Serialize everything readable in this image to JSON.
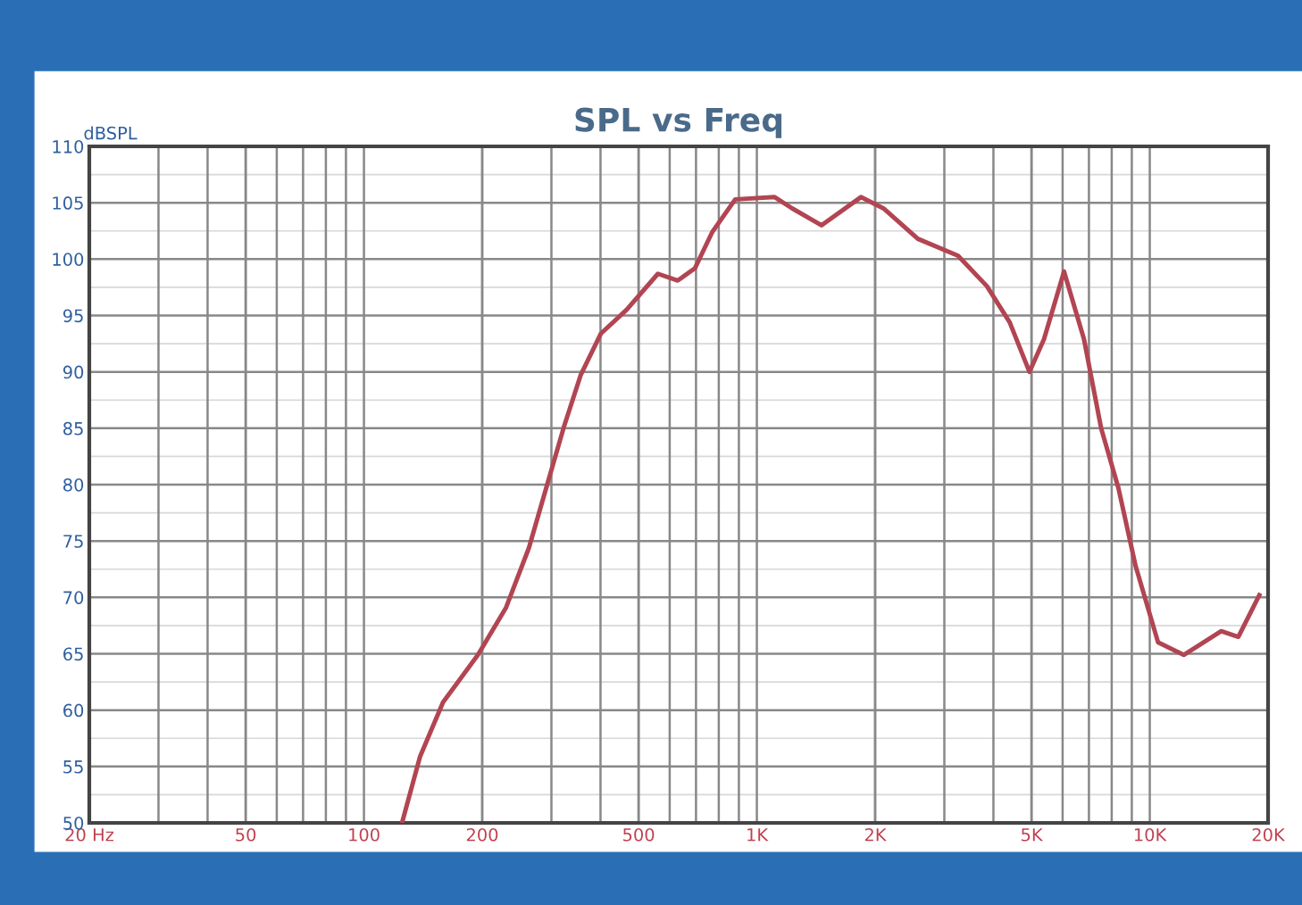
{
  "chart_data": {
    "type": "line",
    "title": "SPL vs Freq",
    "ylabel": "dBSPL",
    "series": [
      {
        "color": "#b24552",
        "x": [
          125,
          139,
          159,
          195,
          230,
          263,
          291,
          322,
          356,
          401,
          466,
          560,
          629,
          696,
          770,
          881,
          1110,
          1230,
          1460,
          1840,
          2100,
          2570,
          3250,
          3850,
          4400,
          4940,
          5380,
          6050,
          6800,
          7520,
          8320,
          9200,
          10500,
          12200,
          15200,
          16800,
          19000
        ],
        "values": [
          50,
          55.9,
          60.7,
          64.9,
          69.1,
          74.4,
          79.7,
          85,
          89.7,
          93.4,
          95.5,
          98.7,
          98.1,
          99.2,
          102.4,
          105.3,
          105.5,
          104.5,
          103,
          105.5,
          104.5,
          101.8,
          100.3,
          97.6,
          94.4,
          90,
          92.9,
          98.9,
          92.9,
          85,
          79.7,
          72.8,
          66,
          64.9,
          67,
          66.5,
          70.2
        ]
      }
    ],
    "log": "x",
    "xlim": [
      20,
      20000
    ],
    "ylim": [
      50,
      110
    ],
    "xticks": [
      {
        "value": 20,
        "label": "20 Hz"
      },
      50,
      100,
      200,
      500,
      {
        "value": 1000,
        "label": "1K"
      },
      {
        "value": 2000,
        "label": "2K"
      },
      {
        "value": 5000,
        "label": "5K"
      },
      {
        "value": 10000,
        "label": "10K"
      },
      {
        "value": 20000,
        "label": "20K"
      }
    ],
    "yticks": [
      50,
      55,
      60,
      65,
      70,
      75,
      80,
      85,
      90,
      95,
      100,
      105,
      110
    ],
    "grid": true,
    "legend": false,
    "marker": "none",
    "line_style": "solid"
  }
}
